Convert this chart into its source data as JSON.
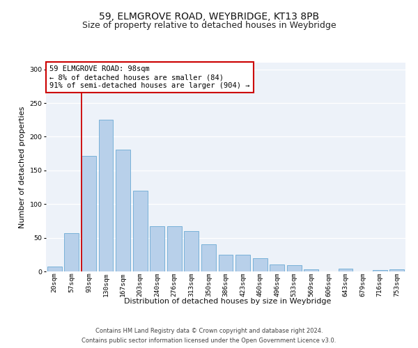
{
  "title1": "59, ELMGROVE ROAD, WEYBRIDGE, KT13 8PB",
  "title2": "Size of property relative to detached houses in Weybridge",
  "xlabel": "Distribution of detached houses by size in Weybridge",
  "ylabel": "Number of detached properties",
  "categories": [
    "20sqm",
    "57sqm",
    "93sqm",
    "130sqm",
    "167sqm",
    "203sqm",
    "240sqm",
    "276sqm",
    "313sqm",
    "350sqm",
    "386sqm",
    "423sqm",
    "460sqm",
    "496sqm",
    "533sqm",
    "569sqm",
    "606sqm",
    "643sqm",
    "679sqm",
    "716sqm",
    "753sqm"
  ],
  "values": [
    7,
    57,
    172,
    225,
    181,
    120,
    67,
    67,
    60,
    40,
    25,
    25,
    20,
    10,
    9,
    3,
    0,
    4,
    0,
    2,
    3
  ],
  "bar_color": "#b8d0ea",
  "bar_edge_color": "#6aaad4",
  "vline_x_index": 2,
  "vline_color": "#cc0000",
  "annotation_text": "59 ELMGROVE ROAD: 98sqm\n← 8% of detached houses are smaller (84)\n91% of semi-detached houses are larger (904) →",
  "annotation_box_facecolor": "#ffffff",
  "annotation_box_edgecolor": "#cc0000",
  "footnote_line1": "Contains HM Land Registry data © Crown copyright and database right 2024.",
  "footnote_line2": "Contains public sector information licensed under the Open Government Licence v3.0.",
  "ylim_max": 310,
  "yticks": [
    0,
    50,
    100,
    150,
    200,
    250,
    300
  ],
  "bg_color": "#edf2f9",
  "grid_color": "#ffffff",
  "title1_fontsize": 10,
  "title2_fontsize": 9,
  "ylabel_fontsize": 8,
  "xlabel_fontsize": 8,
  "annot_fontsize": 7.5,
  "tick_fontsize": 6.8,
  "footnote_fontsize": 6.0
}
